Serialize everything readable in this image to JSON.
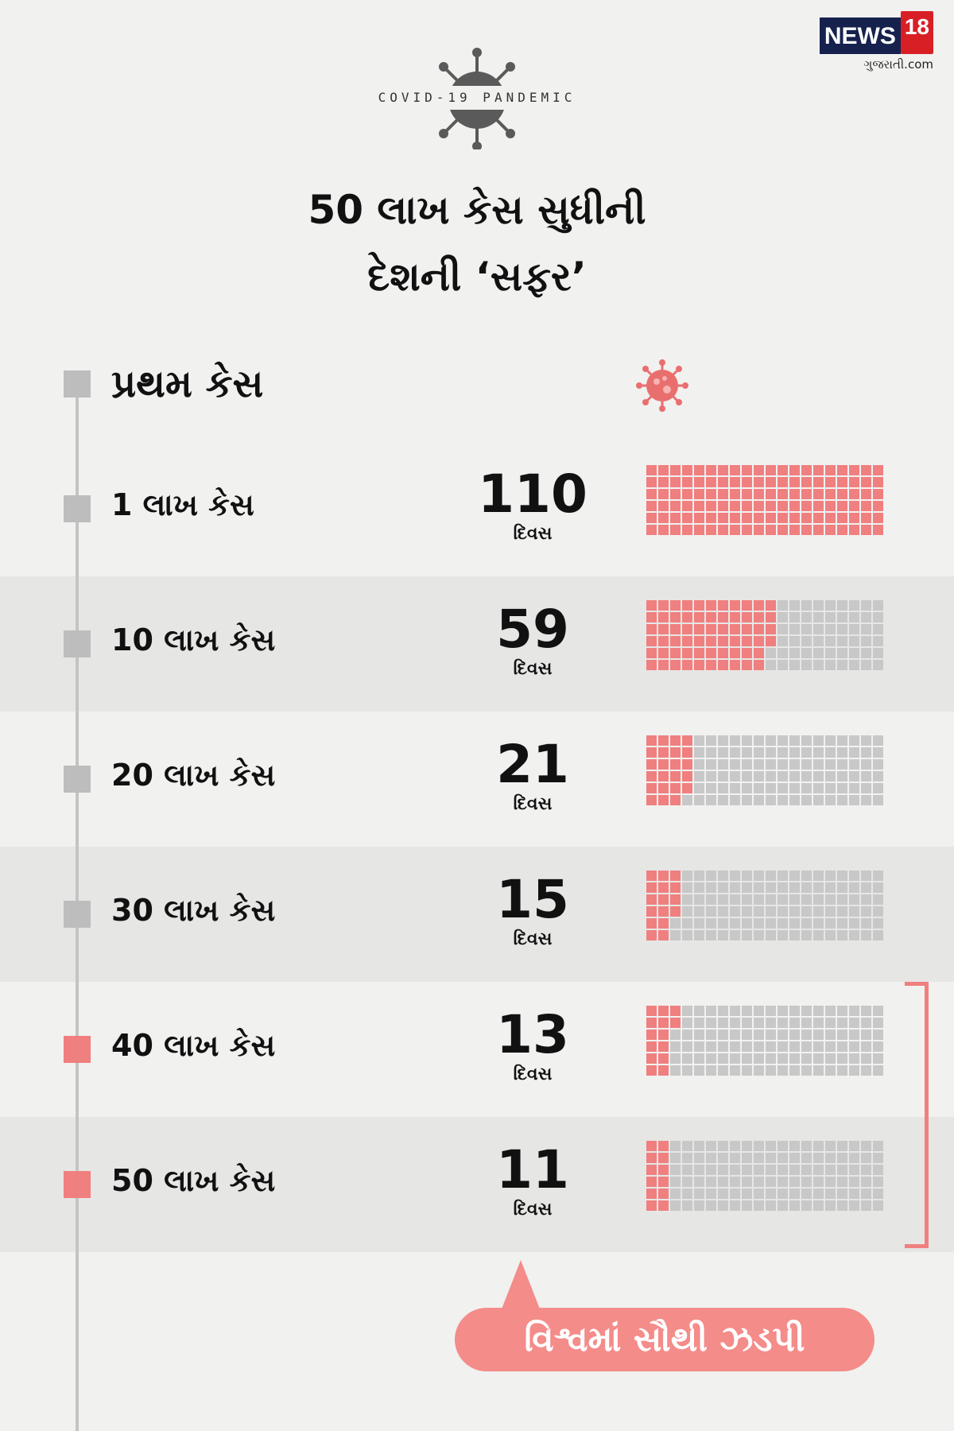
{
  "brand": {
    "name": "NEWS",
    "number": "18",
    "sub": "ગુજરાતી.com"
  },
  "header": {
    "kicker": "COVID-19 PANDEMIC",
    "title_line1": "50 લાખ કેસ સુધીની",
    "title_line2": "દેશની ‘સફર’"
  },
  "colors": {
    "accent": "#f07f7f",
    "filled_cell": "#f07f7f",
    "empty_cell": "#c8c8c8",
    "marker_gray": "#bdbdbd",
    "marker_red": "#f07f7f",
    "text": "#111111",
    "band": "#e6e6e5"
  },
  "icons": {
    "header": "virus-icon",
    "row_header": "virus-icon"
  },
  "first_case": {
    "label": "પ્રથમ કેસ"
  },
  "chart_data": {
    "type": "table",
    "xlabel": "",
    "ylabel": "",
    "unit": "દિવસ",
    "waffle_cells_max": 110,
    "categories": [
      "1 લાખ કેસ",
      "10 લાખ કેસ",
      "20 લાખ કેસ",
      "30 લાખ કેસ",
      "40 લાખ કેસ",
      "50 લાખ કેસ"
    ],
    "values": [
      110,
      59,
      21,
      15,
      13,
      11
    ],
    "highlighted": [
      false,
      false,
      false,
      false,
      true,
      true
    ]
  },
  "callout": {
    "text": "વિશ્વમાં સૌથી ઝડપી"
  }
}
